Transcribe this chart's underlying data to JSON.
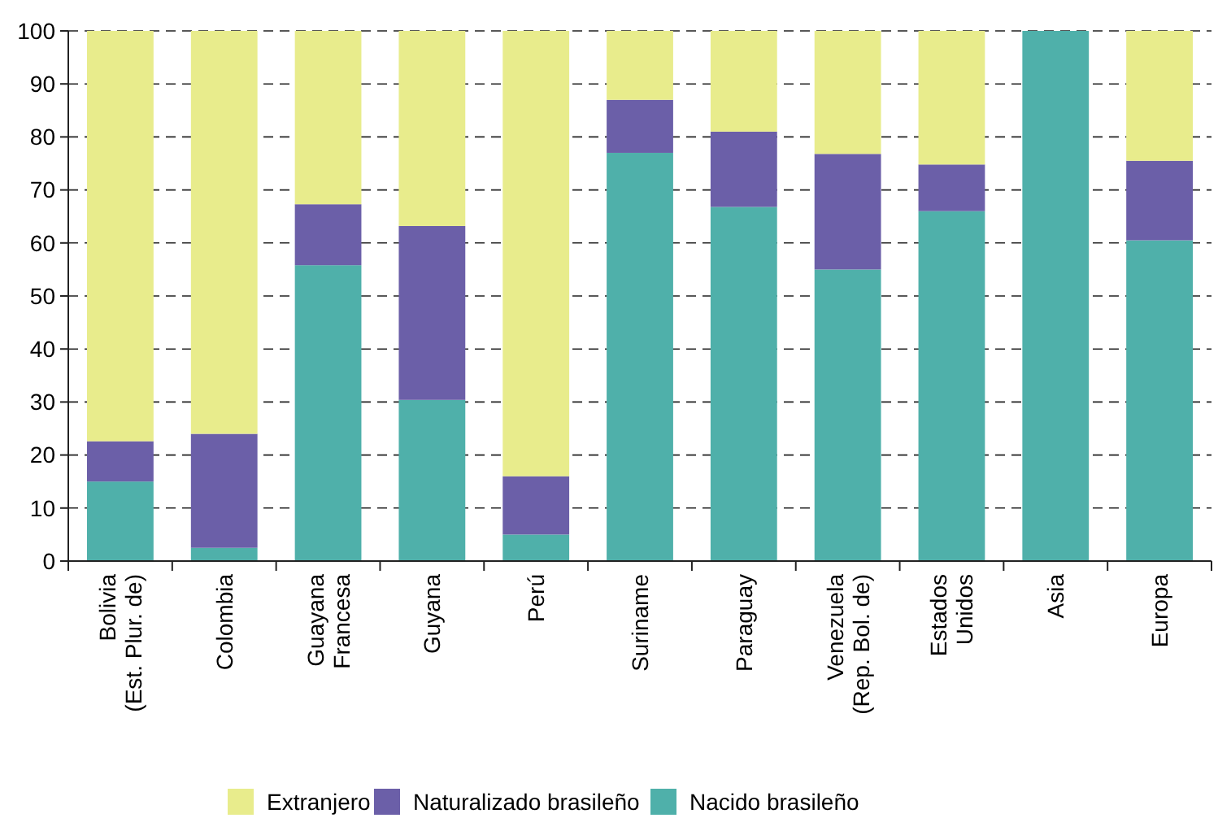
{
  "chart_data": {
    "type": "bar",
    "stacked": true,
    "categories": [
      "Bolivia\n(Est. Plur. de)",
      "Colombia",
      "Guayana\nFrancesa",
      "Guyana",
      "Perú",
      "Suriname",
      "Paraguay",
      "Venezuela\n(Rep. Bol. de)",
      "Estados\nUnidos",
      "Asia",
      "Europa"
    ],
    "series": [
      {
        "name": "Nacido brasileño",
        "color": "#4fb0aa",
        "values": [
          15,
          2.5,
          55.8,
          30.4,
          5,
          77,
          66.8,
          55,
          66,
          100,
          60.5
        ]
      },
      {
        "name": "Naturalizado brasileño",
        "color": "#6b5fa8",
        "values": [
          7.6,
          21.5,
          11.5,
          32.8,
          11,
          10,
          14.2,
          21.8,
          8.8,
          0,
          15
        ]
      },
      {
        "name": "Extranjero",
        "color": "#e8ec8c",
        "values": [
          77.4,
          76,
          32.7,
          36.8,
          84,
          13,
          19,
          23.2,
          25.2,
          0,
          24.5
        ]
      }
    ],
    "ylim": [
      0,
      100
    ],
    "yticks": [
      0,
      10,
      20,
      30,
      40,
      50,
      60,
      70,
      80,
      90,
      100
    ],
    "grid": "y",
    "legend": "bottom"
  }
}
